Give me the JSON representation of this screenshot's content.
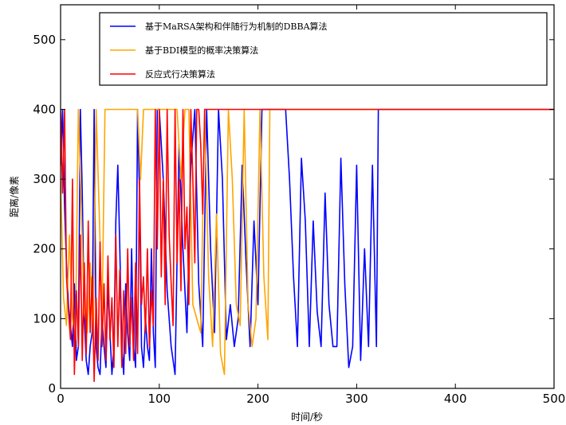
{
  "chart_data": {
    "type": "line",
    "title": "",
    "xlabel": "时间/秒",
    "ylabel": "距离/像素",
    "xlim": [
      0,
      500
    ],
    "ylim": [
      0,
      550
    ],
    "xticks": [
      0,
      100,
      200,
      300,
      400,
      500
    ],
    "yticks": [
      0,
      100,
      200,
      300,
      400,
      500
    ],
    "grid": false,
    "legend_position": "top-right",
    "series": [
      {
        "name": "基于MaRSA架构和伴随行为机制的DBBA算法",
        "color": "#0000ff",
        "x": [
          0,
          2,
          4,
          6,
          8,
          10,
          12,
          14,
          16,
          18,
          20,
          22,
          24,
          26,
          28,
          30,
          32,
          34,
          36,
          38,
          40,
          42,
          44,
          46,
          48,
          50,
          52,
          54,
          56,
          58,
          60,
          62,
          64,
          66,
          68,
          70,
          72,
          74,
          76,
          78,
          80,
          82,
          84,
          86,
          88,
          90,
          92,
          94,
          96,
          98,
          100,
          104,
          108,
          112,
          116,
          120,
          124,
          128,
          132,
          136,
          140,
          144,
          148,
          152,
          156,
          160,
          164,
          168,
          172,
          176,
          180,
          184,
          188,
          192,
          196,
          200,
          204,
          208,
          212,
          216,
          220,
          224,
          228,
          232,
          236,
          240,
          244,
          248,
          252,
          256,
          260,
          264,
          268,
          272,
          276,
          280,
          284,
          288,
          292,
          296,
          300,
          304,
          308,
          312,
          316,
          320,
          322,
          500
        ],
        "y": [
          320,
          400,
          260,
          180,
          120,
          90,
          60,
          150,
          40,
          60,
          400,
          280,
          100,
          40,
          20,
          60,
          80,
          400,
          60,
          30,
          20,
          100,
          60,
          30,
          150,
          80,
          20,
          60,
          240,
          320,
          200,
          60,
          20,
          150,
          80,
          40,
          200,
          60,
          30,
          400,
          280,
          60,
          30,
          100,
          60,
          40,
          200,
          80,
          30,
          400,
          400,
          300,
          140,
          60,
          20,
          350,
          200,
          80,
          320,
          400,
          150,
          60,
          400,
          200,
          80,
          400,
          300,
          70,
          120,
          60,
          100,
          320,
          180,
          60,
          240,
          120,
          400,
          400,
          400,
          400,
          400,
          400,
          400,
          300,
          160,
          60,
          330,
          240,
          60,
          240,
          110,
          60,
          280,
          120,
          60,
          60,
          330,
          150,
          30,
          60,
          320,
          40,
          200,
          60,
          320,
          60,
          400,
          400
        ]
      },
      {
        "name": "基于BDI模型的概率决策算法",
        "color": "#ffa500",
        "x": [
          0,
          3,
          6,
          9,
          12,
          15,
          18,
          21,
          24,
          27,
          30,
          33,
          36,
          39,
          42,
          45,
          48,
          51,
          54,
          57,
          60,
          63,
          66,
          69,
          72,
          75,
          78,
          81,
          84,
          87,
          90,
          93,
          96,
          99,
          102,
          106,
          110,
          114,
          118,
          122,
          126,
          130,
          134,
          138,
          142,
          146,
          150,
          154,
          158,
          162,
          166,
          170,
          174,
          178,
          182,
          186,
          190,
          194,
          198,
          202,
          206,
          210,
          212,
          500
        ],
        "y": [
          300,
          130,
          90,
          220,
          100,
          70,
          400,
          260,
          110,
          80,
          180,
          70,
          400,
          260,
          100,
          400,
          400,
          400,
          400,
          400,
          400,
          400,
          400,
          400,
          400,
          400,
          400,
          300,
          400,
          400,
          400,
          400,
          400,
          400,
          400,
          400,
          400,
          400,
          400,
          300,
          400,
          400,
          120,
          100,
          80,
          400,
          160,
          60,
          250,
          50,
          20,
          400,
          300,
          120,
          90,
          400,
          120,
          60,
          100,
          400,
          160,
          70,
          400,
          400
        ]
      },
      {
        "name": "反应式行决策算法",
        "color": "#ff0000",
        "x": [
          0,
          2,
          4,
          6,
          8,
          10,
          12,
          14,
          16,
          18,
          20,
          22,
          24,
          26,
          28,
          30,
          32,
          34,
          36,
          38,
          40,
          42,
          44,
          46,
          48,
          50,
          52,
          54,
          56,
          58,
          60,
          62,
          64,
          66,
          68,
          70,
          72,
          74,
          76,
          78,
          80,
          82,
          84,
          86,
          88,
          90,
          92,
          94,
          96,
          98,
          100,
          102,
          104,
          106,
          108,
          110,
          112,
          114,
          116,
          118,
          120,
          122,
          124,
          126,
          128,
          130,
          132,
          134,
          136,
          138,
          140,
          142,
          144,
          146,
          148,
          150,
          152,
          154,
          156,
          158,
          160,
          162,
          164,
          166,
          168,
          170,
          172,
          174,
          176,
          178,
          180,
          182,
          184,
          186,
          188,
          190,
          192,
          194,
          196,
          198,
          200,
          500
        ],
        "y": [
          400,
          280,
          400,
          160,
          110,
          70,
          300,
          20,
          140,
          60,
          220,
          40,
          180,
          50,
          240,
          80,
          160,
          10,
          130,
          40,
          210,
          60,
          150,
          40,
          190,
          70,
          130,
          30,
          220,
          60,
          170,
          30,
          140,
          50,
          200,
          60,
          130,
          40,
          180,
          50,
          300,
          120,
          160,
          80,
          200,
          60,
          140,
          90,
          400,
          200,
          400,
          160,
          300,
          120,
          400,
          220,
          150,
          90,
          400,
          180,
          300,
          140,
          400,
          200,
          260,
          120,
          400,
          300,
          180,
          400,
          400,
          350,
          250,
          400,
          400,
          400,
          400,
          400,
          400,
          400,
          400,
          400,
          400,
          400,
          400,
          400,
          400,
          400,
          400,
          400,
          400,
          400,
          400,
          400,
          400,
          400,
          400,
          400,
          400,
          400,
          400,
          400
        ]
      }
    ]
  }
}
